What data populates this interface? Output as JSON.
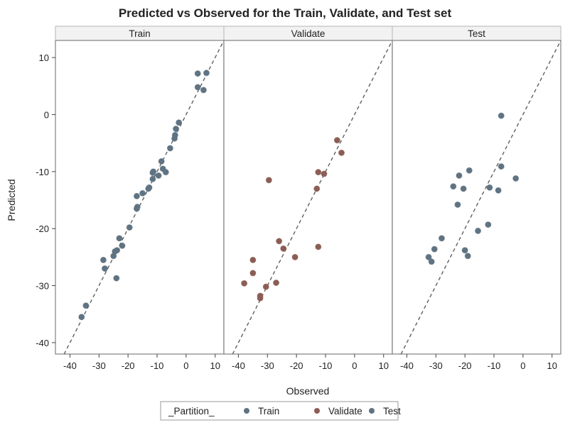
{
  "chart_data": {
    "type": "scatter",
    "title": "Predicted vs Observed for the Train, Validate, and Test set",
    "xlabel": "Observed",
    "ylabel": "Predicted",
    "xlim": [
      -45,
      13
    ],
    "ylim": [
      -42,
      13
    ],
    "x_ticks": [
      -40,
      -30,
      -20,
      -10,
      0,
      10
    ],
    "y_ticks": [
      -40,
      -30,
      -20,
      -10,
      0,
      10
    ],
    "reference_line": "y = x (dashed)",
    "grid": false,
    "legend_position": "bottom-center",
    "legend_title": "_Partition_",
    "panels": [
      {
        "name": "Train",
        "color": "#5f7382",
        "points": [
          {
            "x": -36,
            "y": -35.5
          },
          {
            "x": -34.5,
            "y": -33.5
          },
          {
            "x": -28.5,
            "y": -25.5
          },
          {
            "x": -28,
            "y": -27
          },
          {
            "x": -25,
            "y": -24.8
          },
          {
            "x": -24.5,
            "y": -24
          },
          {
            "x": -24,
            "y": -28.7
          },
          {
            "x": -23.8,
            "y": -23.8
          },
          {
            "x": -23,
            "y": -21.7
          },
          {
            "x": -22,
            "y": -23
          },
          {
            "x": -19.5,
            "y": -19.8
          },
          {
            "x": -17,
            "y": -16.5
          },
          {
            "x": -16.8,
            "y": -16.2
          },
          {
            "x": -17,
            "y": -14.3
          },
          {
            "x": -15,
            "y": -13.8
          },
          {
            "x": -13,
            "y": -13
          },
          {
            "x": -12.7,
            "y": -12.8
          },
          {
            "x": -11.5,
            "y": -11.3
          },
          {
            "x": -11.5,
            "y": -10.2
          },
          {
            "x": -11.3,
            "y": -10
          },
          {
            "x": -9.5,
            "y": -10.7
          },
          {
            "x": -8.5,
            "y": -8.2
          },
          {
            "x": -8,
            "y": -9.5
          },
          {
            "x": -7,
            "y": -10.1
          },
          {
            "x": -5.5,
            "y": -5.9
          },
          {
            "x": -4,
            "y": -4.2
          },
          {
            "x": -3.8,
            "y": -3.6
          },
          {
            "x": -3.5,
            "y": -2.5
          },
          {
            "x": -2.5,
            "y": -1.4
          },
          {
            "x": 4,
            "y": 4.8
          },
          {
            "x": 4,
            "y": 7.2
          },
          {
            "x": 6,
            "y": 4.3
          },
          {
            "x": 7,
            "y": 7.3
          }
        ]
      },
      {
        "name": "Validate",
        "color": "#8c5d55",
        "points": [
          {
            "x": -38,
            "y": -29.6
          },
          {
            "x": -35,
            "y": -25.5
          },
          {
            "x": -35,
            "y": -27.8
          },
          {
            "x": -32.5,
            "y": -31.8
          },
          {
            "x": -32.5,
            "y": -32.2
          },
          {
            "x": -30.5,
            "y": -30.2
          },
          {
            "x": -29.5,
            "y": -11.5
          },
          {
            "x": -27,
            "y": -29.5
          },
          {
            "x": -26,
            "y": -22.2
          },
          {
            "x": -24.5,
            "y": -23.5
          },
          {
            "x": -20.5,
            "y": -25
          },
          {
            "x": -13,
            "y": -13
          },
          {
            "x": -12.5,
            "y": -10.1
          },
          {
            "x": -12.5,
            "y": -23.2
          },
          {
            "x": -10.5,
            "y": -10.4
          },
          {
            "x": -6,
            "y": -4.5
          },
          {
            "x": -4.5,
            "y": -6.7
          }
        ]
      },
      {
        "name": "Test",
        "color": "#5f7382",
        "points": [
          {
            "x": -32.5,
            "y": -25
          },
          {
            "x": -31.5,
            "y": -25.8
          },
          {
            "x": -30.5,
            "y": -23.6
          },
          {
            "x": -28,
            "y": -21.7
          },
          {
            "x": -24,
            "y": -12.6
          },
          {
            "x": -22.5,
            "y": -15.8
          },
          {
            "x": -22,
            "y": -10.7
          },
          {
            "x": -20.5,
            "y": -13
          },
          {
            "x": -20,
            "y": -23.8
          },
          {
            "x": -19,
            "y": -24.8
          },
          {
            "x": -18.5,
            "y": -9.8
          },
          {
            "x": -15.5,
            "y": -20.4
          },
          {
            "x": -12,
            "y": -19.3
          },
          {
            "x": -11.5,
            "y": -12.8
          },
          {
            "x": -8.5,
            "y": -13.3
          },
          {
            "x": -7.5,
            "y": -9.1
          },
          {
            "x": -7.5,
            "y": -0.2
          },
          {
            "x": -2.5,
            "y": -11.2
          }
        ]
      }
    ],
    "legend": [
      {
        "name": "Train",
        "color": "#5f7382"
      },
      {
        "name": "Validate",
        "color": "#8c5d55"
      },
      {
        "name": "Test",
        "color": "#5f7382"
      }
    ]
  }
}
